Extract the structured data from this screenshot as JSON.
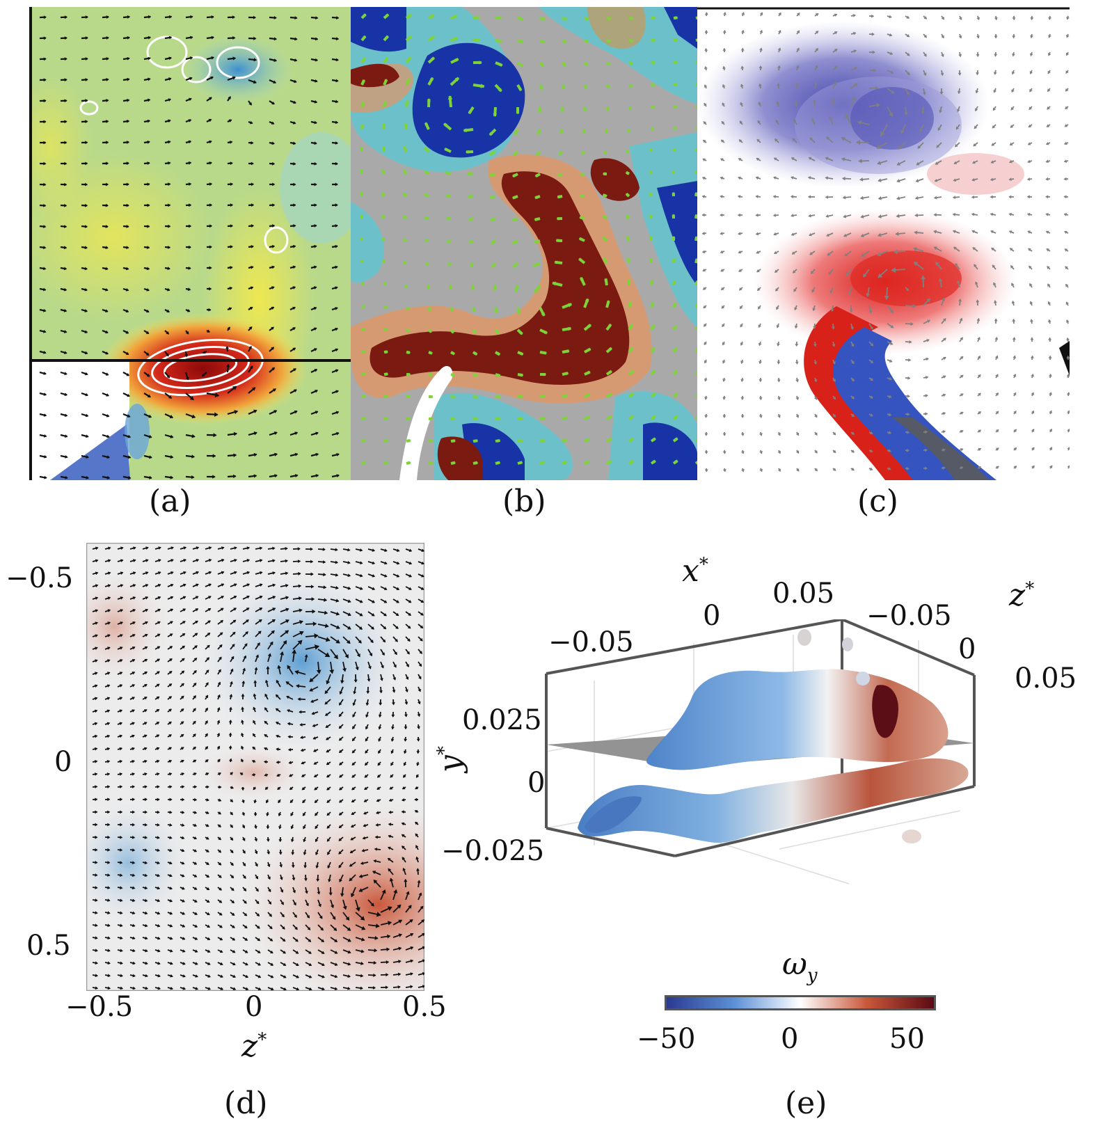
{
  "panels": {
    "a": {
      "label": "(a)"
    },
    "b": {
      "label": "(b)"
    },
    "c": {
      "label": "(c)"
    },
    "d": {
      "label": "(d)",
      "x_axis": {
        "title_base": "z",
        "title_sup": "*",
        "ticks": [
          "−0.5",
          "0",
          "0.5"
        ]
      },
      "y_axis": {
        "ticks": [
          "−0.5",
          "0",
          "0.5"
        ]
      }
    },
    "e": {
      "label": "(e)",
      "x_axis": {
        "title_base": "x",
        "title_sup": "*",
        "ticks": [
          "−0.05",
          "0",
          "0.05"
        ]
      },
      "z_axis": {
        "title_base": "z",
        "title_sup": "*",
        "ticks": [
          "−0.05",
          "0",
          "0.05"
        ]
      },
      "y_axis": {
        "title_base": "y",
        "title_sup": "*",
        "ticks": [
          "0.025",
          "0",
          "−0.025"
        ]
      },
      "colorbar": {
        "title_base": "ω",
        "title_sub": "y",
        "ticks": [
          "−50",
          "0",
          "50"
        ],
        "colors": [
          "#2b3a8f",
          "#5b8fd6",
          "#ffffff",
          "#c9573a",
          "#5a0a14"
        ]
      }
    }
  }
}
